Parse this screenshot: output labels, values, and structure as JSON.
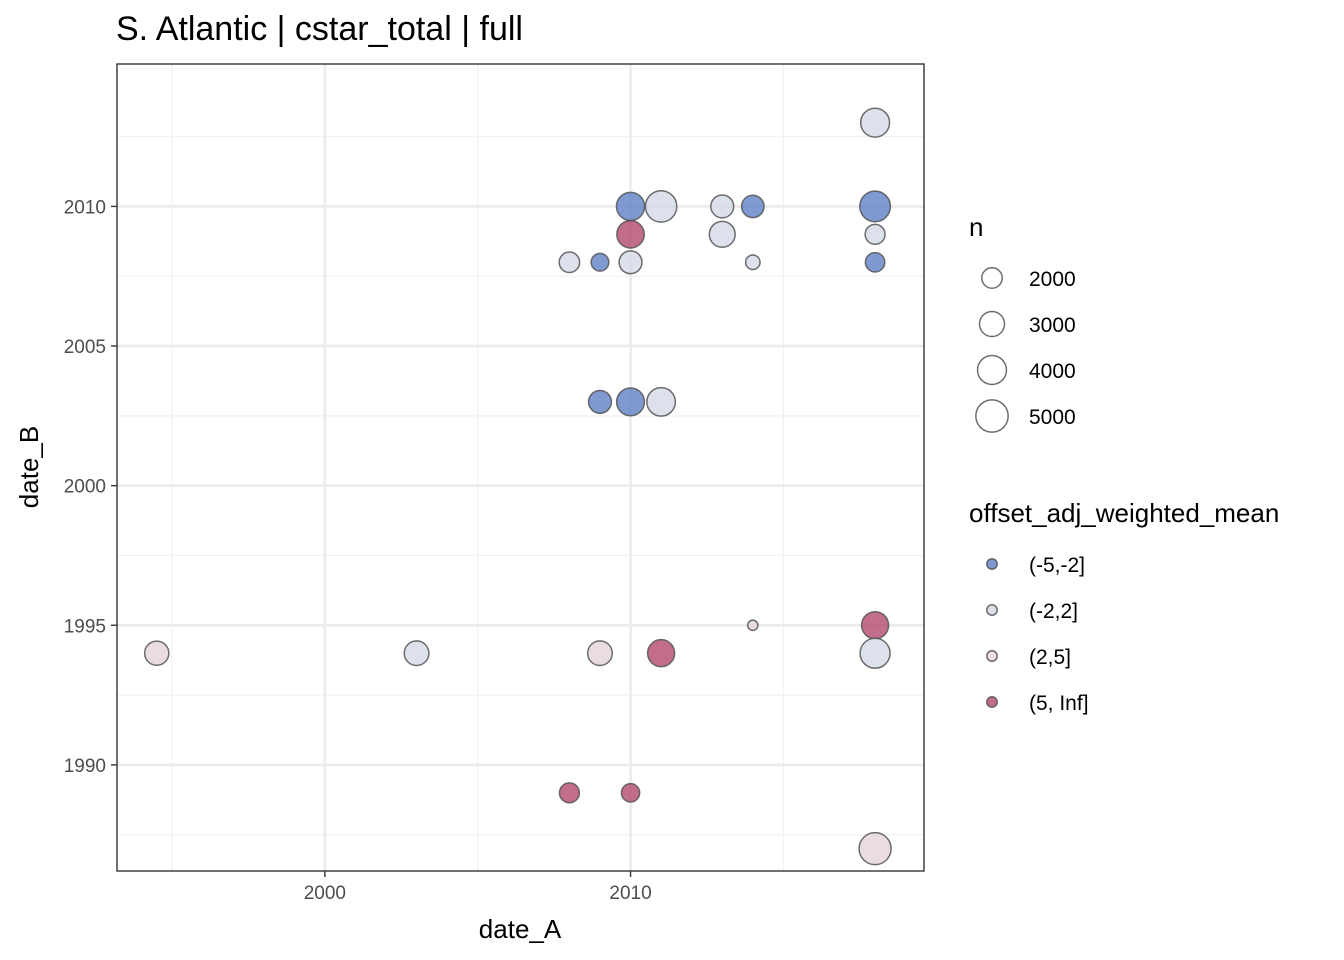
{
  "chart_data": {
    "type": "scatter",
    "title": "S. Atlantic | cstar_total | full",
    "xlabel": "date_A",
    "ylabel": "date_B",
    "xlim": [
      1993.2,
      2019.6
    ],
    "ylim": [
      1986.2,
      2015.1
    ],
    "x_ticks": [
      2000,
      2010
    ],
    "y_ticks": [
      1990,
      1995,
      2000,
      2005,
      2010
    ],
    "grid": true,
    "legend_position": "right",
    "size_legend": {
      "title": "n",
      "entries": [
        {
          "label": "2000",
          "n": 2000
        },
        {
          "label": "3000",
          "n": 3000
        },
        {
          "label": "4000",
          "n": 4000
        },
        {
          "label": "5000",
          "n": 5000
        }
      ]
    },
    "color_legend": {
      "title": "offset_adj_weighted_mean",
      "entries": [
        {
          "label": "(-5,-2]",
          "color": "#5b7cc4"
        },
        {
          "label": "(-2,2]",
          "color": "#d4d9e6"
        },
        {
          "label": "(2,5]",
          "color": "#e3d4d9"
        },
        {
          "label": "(5, Inf]",
          "color": "#b1446c"
        }
      ]
    },
    "points": [
      {
        "x": 2018,
        "y": 2013,
        "n": 4000,
        "bin": "(-2,2]"
      },
      {
        "x": 2010,
        "y": 2010,
        "n": 3800,
        "bin": "(-5,-2]"
      },
      {
        "x": 2011,
        "y": 2010,
        "n": 4700,
        "bin": "(-2,2]"
      },
      {
        "x": 2013,
        "y": 2010,
        "n": 2500,
        "bin": "(-2,2]"
      },
      {
        "x": 2014,
        "y": 2010,
        "n": 2400,
        "bin": "(-5,-2]"
      },
      {
        "x": 2018,
        "y": 2010,
        "n": 4500,
        "bin": "(-5,-2]"
      },
      {
        "x": 2010,
        "y": 2009,
        "n": 3600,
        "bin": "(5, Inf]"
      },
      {
        "x": 2013,
        "y": 2009,
        "n": 3200,
        "bin": "(-2,2]"
      },
      {
        "x": 2018,
        "y": 2009,
        "n": 1900,
        "bin": "(-2,2]"
      },
      {
        "x": 2008,
        "y": 2008,
        "n": 2000,
        "bin": "(-2,2]"
      },
      {
        "x": 2009,
        "y": 2008,
        "n": 1500,
        "bin": "(-5,-2]"
      },
      {
        "x": 2010,
        "y": 2008,
        "n": 2500,
        "bin": "(-2,2]"
      },
      {
        "x": 2014,
        "y": 2008,
        "n": 1000,
        "bin": "(-2,2]"
      },
      {
        "x": 2018,
        "y": 2008,
        "n": 1800,
        "bin": "(-5,-2]"
      },
      {
        "x": 2009,
        "y": 2003,
        "n": 2500,
        "bin": "(-5,-2]"
      },
      {
        "x": 2010,
        "y": 2003,
        "n": 3700,
        "bin": "(-5,-2]"
      },
      {
        "x": 2011,
        "y": 2003,
        "n": 3900,
        "bin": "(-2,2]"
      },
      {
        "x": 2014,
        "y": 1995,
        "n": 500,
        "bin": "(2,5]"
      },
      {
        "x": 2018,
        "y": 1995,
        "n": 3500,
        "bin": "(5, Inf]"
      },
      {
        "x": 1994.5,
        "y": 1994,
        "n": 2800,
        "bin": "(2,5]"
      },
      {
        "x": 2003,
        "y": 1994,
        "n": 2900,
        "bin": "(-2,2]"
      },
      {
        "x": 2009,
        "y": 1994,
        "n": 2900,
        "bin": "(2,5]"
      },
      {
        "x": 2011,
        "y": 1994,
        "n": 3500,
        "bin": "(5, Inf]"
      },
      {
        "x": 2018,
        "y": 1994,
        "n": 4300,
        "bin": "(-2,2]"
      },
      {
        "x": 2008,
        "y": 1989,
        "n": 1900,
        "bin": "(5, Inf]"
      },
      {
        "x": 2010,
        "y": 1989,
        "n": 1600,
        "bin": "(5, Inf]"
      },
      {
        "x": 2018,
        "y": 1987,
        "n": 4900,
        "bin": "(2,5]"
      }
    ]
  }
}
